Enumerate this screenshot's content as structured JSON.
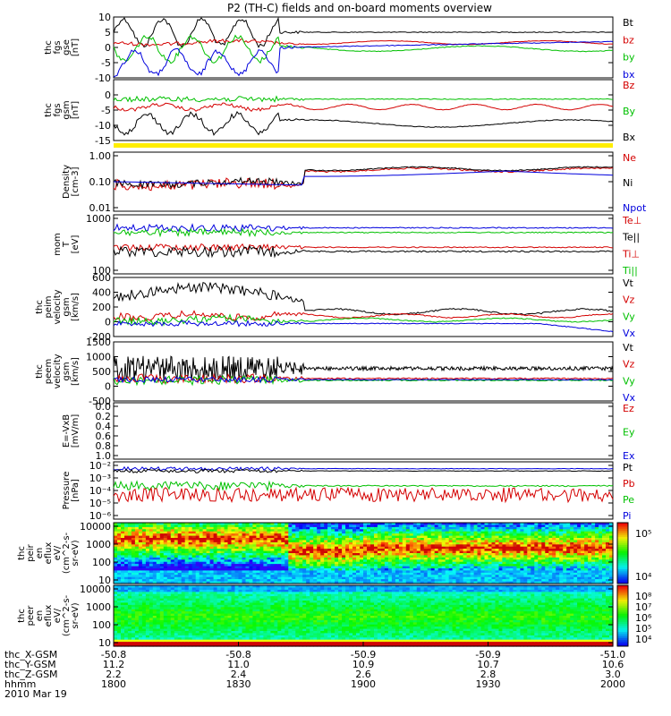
{
  "title": "P2 (TH-C) fields and on-board moments overview",
  "colors": {
    "black": "#000000",
    "red": "#d40000",
    "green": "#00c000",
    "blue": "#0000dd",
    "yellow": "#ffee00"
  },
  "chart_data": [
    {
      "type": "line",
      "ylabel": [
        "thc",
        "fgs",
        "gse",
        "[nT]"
      ],
      "ylim": [
        -10,
        10
      ],
      "yticks": [
        -10,
        -5,
        0,
        5,
        10
      ],
      "series": [
        {
          "name": "Bt",
          "color": "black"
        },
        {
          "name": "bz",
          "color": "red"
        },
        {
          "name": "by",
          "color": "green"
        },
        {
          "name": "bx",
          "color": "blue"
        }
      ]
    },
    {
      "type": "line",
      "ylabel": [
        "thc",
        "fgs",
        "gsm",
        "[nT]"
      ],
      "ylim": [
        -15,
        5
      ],
      "yticks": [
        -15,
        -10,
        -5,
        0
      ],
      "series": [
        {
          "name": "Bz",
          "color": "red"
        },
        {
          "name": "By",
          "color": "green"
        },
        {
          "name": "Bx",
          "color": "black"
        }
      ]
    },
    {
      "type": "line",
      "ylabel": [
        "Density",
        "[cm-3]"
      ],
      "yscale": "log",
      "ylim": [
        0.01,
        1.0
      ],
      "yticks": [
        "1.00",
        "0.10",
        "0.01"
      ],
      "series": [
        {
          "name": "Ne",
          "color": "red"
        },
        {
          "name": "Ni",
          "color": "black"
        },
        {
          "name": "Npot",
          "color": "blue"
        }
      ]
    },
    {
      "type": "line",
      "ylabel": [
        "mom",
        "T",
        "[eV]"
      ],
      "yscale": "log",
      "ylim": [
        30,
        4000
      ],
      "yticks": [
        "1000",
        "100"
      ],
      "series": [
        {
          "name": "Te⊥",
          "color": "red"
        },
        {
          "name": "Te||",
          "color": "black"
        },
        {
          "name": "Ti⊥",
          "color": "red"
        },
        {
          "name": "Ti||",
          "color": "green"
        }
      ]
    },
    {
      "type": "line",
      "ylabel": [
        "thc",
        "peim",
        "velocity",
        "gsm",
        "[km/s]"
      ],
      "ylim": [
        -200,
        600
      ],
      "yticks": [
        -200,
        0,
        200,
        400,
        600
      ],
      "series": [
        {
          "name": "Vt",
          "color": "black"
        },
        {
          "name": "Vz",
          "color": "red"
        },
        {
          "name": "Vy",
          "color": "green"
        },
        {
          "name": "Vx",
          "color": "blue"
        }
      ]
    },
    {
      "type": "line",
      "ylabel": [
        "thc",
        "peem",
        "velocity",
        "gsm",
        "[km/s]"
      ],
      "ylim": [
        -500,
        1500
      ],
      "yticks": [
        -500,
        0,
        500,
        1000,
        1500
      ],
      "series": [
        {
          "name": "Vt",
          "color": "black"
        },
        {
          "name": "Vz",
          "color": "red"
        },
        {
          "name": "Vy",
          "color": "green"
        },
        {
          "name": "Vx",
          "color": "blue"
        }
      ]
    },
    {
      "type": "line",
      "ylabel": [
        "E=-VxB",
        "[mV/m]"
      ],
      "ylim": [
        0,
        1
      ],
      "yticks": [
        "0.0",
        "0.2",
        "0.4",
        "0.6",
        "0.8",
        "1.0"
      ],
      "series": [
        {
          "name": "Ez",
          "color": "red"
        },
        {
          "name": "Ey",
          "color": "green"
        },
        {
          "name": "Ex",
          "color": "blue"
        }
      ]
    },
    {
      "type": "line",
      "ylabel": [
        "Pressure",
        "[nPa]"
      ],
      "yscale": "log",
      "ylim": [
        1e-06,
        0.1
      ],
      "yticks": [
        "10⁻²",
        "10⁻³",
        "10⁻⁴",
        "10⁻⁵",
        "10⁻⁶"
      ],
      "series": [
        {
          "name": "Pt",
          "color": "black"
        },
        {
          "name": "Pb",
          "color": "red"
        },
        {
          "name": "Pe",
          "color": "green"
        },
        {
          "name": "Pi",
          "color": "blue"
        }
      ]
    },
    {
      "type": "heatmap",
      "ylabel": [
        "thc",
        "peir",
        "en",
        "eflux",
        "eV/",
        "(cm^2-s-",
        "sr-eV)"
      ],
      "yscale": "log",
      "ylim": [
        10,
        15000
      ],
      "yticks": [
        "10000",
        "1000",
        "100",
        "10"
      ],
      "colorbar": {
        "ticks": [
          "10⁵",
          "10⁴"
        ]
      }
    },
    {
      "type": "heatmap",
      "ylabel": [
        "thc",
        "peer",
        "en",
        "eflux",
        "eV/",
        "(cm^2-s-",
        "sr-eV)"
      ],
      "yscale": "log",
      "ylim": [
        8,
        15000
      ],
      "yticks": [
        "10000",
        "1000",
        "100",
        "10"
      ],
      "colorbar": {
        "ticks": [
          "10⁸",
          "10⁷",
          "10⁶",
          "10⁵",
          "10⁴"
        ]
      }
    }
  ],
  "xaxis": {
    "rows": [
      {
        "label": "thc_X-GSM",
        "values": [
          "-50.8",
          "-50.8",
          "-50.9",
          "-50.9",
          "-51.0"
        ]
      },
      {
        "label": "thc_Y-GSM",
        "values": [
          "11.2",
          "11.0",
          "10.9",
          "10.7",
          "10.6"
        ]
      },
      {
        "label": "thc_Z-GSM",
        "values": [
          "2.2",
          "2.4",
          "2.6",
          "2.8",
          "3.0"
        ]
      },
      {
        "label": "hhmm",
        "values": [
          "1800",
          "1830",
          "1900",
          "1930",
          "2000"
        ]
      }
    ],
    "date": "2010 Mar 19"
  }
}
